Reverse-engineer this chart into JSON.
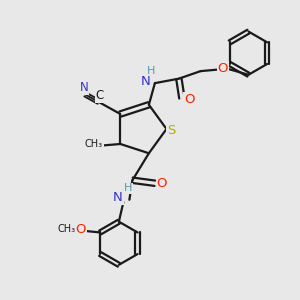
{
  "bg_color": "#e8e8e8",
  "bond_color": "#1a1a1a",
  "bond_lw": 1.6,
  "fs": 8.5,
  "colors": {
    "N": "#3333cc",
    "O": "#ff2200",
    "S": "#bbaa00",
    "C": "#1a1a1a",
    "H": "#5599aa"
  },
  "xlim": [
    0,
    10
  ],
  "ylim": [
    0,
    10
  ]
}
